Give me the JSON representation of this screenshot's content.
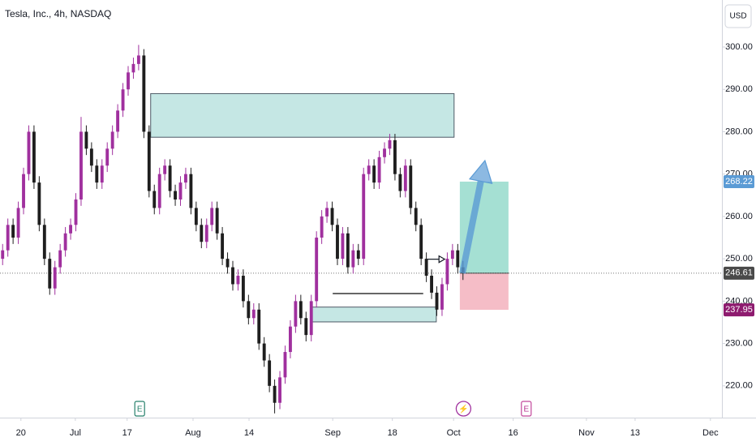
{
  "chart_data": {
    "type": "candlestick",
    "title": "Tesla, Inc., 4h, NASDAQ",
    "currency": "USD",
    "up_color": "#a0309e",
    "down_color": "#1e1e1e",
    "xlim": [
      -0.5,
      137.5
    ],
    "xticks": [
      {
        "value": 3.5,
        "label": "20"
      },
      {
        "value": 13.9,
        "label": "Jul"
      },
      {
        "value": 23.8,
        "label": "17"
      },
      {
        "value": 36.4,
        "label": "Aug"
      },
      {
        "value": 47.1,
        "label": "14"
      },
      {
        "value": 63.1,
        "label": "Sep"
      },
      {
        "value": 74.5,
        "label": "18"
      },
      {
        "value": 86.2,
        "label": "Oct"
      },
      {
        "value": 97.6,
        "label": "16"
      },
      {
        "value": 111.6,
        "label": "Nov"
      },
      {
        "value": 120.9,
        "label": "13"
      },
      {
        "value": 135.3,
        "label": "Dec"
      }
    ],
    "ylim": [
      212.5,
      311.1
    ],
    "yticks": [
      {
        "value": 220,
        "label": "220.00"
      },
      {
        "value": 230,
        "label": "230.00"
      },
      {
        "value": 240,
        "label": "240.00"
      },
      {
        "value": 250,
        "label": "250.00"
      },
      {
        "value": 260,
        "label": "260.00"
      },
      {
        "value": 270,
        "label": "270.00"
      },
      {
        "value": 280,
        "label": "280.00"
      },
      {
        "value": 290,
        "label": "290.00"
      },
      {
        "value": 300,
        "label": "300.00"
      }
    ],
    "candles": [
      [
        250,
        253.5,
        248.5,
        252
      ],
      [
        252,
        259.5,
        250.5,
        258
      ],
      [
        258,
        259.5,
        253.5,
        255
      ],
      [
        255,
        263.5,
        253.5,
        262
      ],
      [
        262,
        271.5,
        260.5,
        270
      ],
      [
        270,
        281.5,
        268.5,
        280
      ],
      [
        280,
        281.5,
        266.5,
        268
      ],
      [
        268,
        269.5,
        256.5,
        258
      ],
      [
        258,
        259.5,
        248.5,
        250
      ],
      [
        250,
        251.5,
        241.5,
        243
      ],
      [
        243,
        249.5,
        241.5,
        248
      ],
      [
        248,
        253.5,
        246.5,
        252
      ],
      [
        252,
        257.5,
        250.5,
        256
      ],
      [
        256,
        259.5,
        254.5,
        258
      ],
      [
        258,
        265.5,
        256.5,
        264
      ],
      [
        264,
        283.5,
        262.5,
        280
      ],
      [
        280,
        281.5,
        274.5,
        276
      ],
      [
        276,
        277.5,
        270.5,
        272
      ],
      [
        272,
        273.5,
        266.5,
        268
      ],
      [
        268,
        273.5,
        266.5,
        272
      ],
      [
        272,
        277.5,
        270.5,
        276
      ],
      [
        276,
        281.5,
        274.5,
        280
      ],
      [
        280,
        286.5,
        278.5,
        285
      ],
      [
        285,
        291.5,
        283.5,
        290
      ],
      [
        290,
        295.5,
        288.5,
        294
      ],
      [
        294,
        297.5,
        292.5,
        296
      ],
      [
        296,
        300.5,
        294.5,
        298
      ],
      [
        298,
        299.5,
        278.5,
        280
      ],
      [
        280,
        281.5,
        264.5,
        266
      ],
      [
        266,
        267.5,
        260.5,
        262
      ],
      [
        262,
        271.5,
        260.5,
        270
      ],
      [
        270,
        273.5,
        268.5,
        272
      ],
      [
        272,
        273.5,
        264.5,
        266
      ],
      [
        266,
        267.5,
        262.5,
        264
      ],
      [
        264,
        269.5,
        262.5,
        268
      ],
      [
        268,
        271.5,
        266.5,
        270
      ],
      [
        270,
        271.5,
        260.5,
        262
      ],
      [
        262,
        263.5,
        256.5,
        258
      ],
      [
        258,
        259.5,
        252.5,
        254
      ],
      [
        254,
        259.5,
        252.5,
        258
      ],
      [
        258,
        263.5,
        256.5,
        262
      ],
      [
        262,
        263.5,
        254.5,
        256
      ],
      [
        256,
        257.5,
        248.5,
        250
      ],
      [
        250,
        251.5,
        246.5,
        248
      ],
      [
        248,
        249.5,
        242.5,
        244
      ],
      [
        244,
        247.5,
        242.5,
        246
      ],
      [
        246,
        247.5,
        238.5,
        240
      ],
      [
        240,
        241.5,
        234.5,
        236
      ],
      [
        236,
        239.5,
        234.5,
        238
      ],
      [
        238,
        239.5,
        228.5,
        230
      ],
      [
        230,
        231.5,
        224.5,
        226
      ],
      [
        226,
        227.5,
        218.5,
        220
      ],
      [
        220,
        221.5,
        213.5,
        216
      ],
      [
        216,
        223.5,
        214.5,
        222
      ],
      [
        222,
        229.5,
        220.5,
        228
      ],
      [
        228,
        235.5,
        226.5,
        234
      ],
      [
        234,
        241.5,
        232.5,
        240
      ],
      [
        240,
        241.5,
        234.5,
        236
      ],
      [
        236,
        237.5,
        230.5,
        232
      ],
      [
        232,
        241.5,
        230.5,
        240
      ],
      [
        240,
        256.5,
        238.5,
        255
      ],
      [
        255,
        261.5,
        253.5,
        260
      ],
      [
        260,
        263.5,
        258.5,
        262
      ],
      [
        262,
        263.5,
        256.5,
        258
      ],
      [
        258,
        259.5,
        248.5,
        250
      ],
      [
        250,
        257.5,
        248.5,
        256
      ],
      [
        256,
        257.5,
        246.5,
        248
      ],
      [
        248,
        253.5,
        246.5,
        252
      ],
      [
        252,
        253.5,
        248.5,
        250
      ],
      [
        250,
        271.5,
        248.5,
        270
      ],
      [
        270,
        273.5,
        268.5,
        272
      ],
      [
        272,
        273.5,
        266.5,
        268
      ],
      [
        268,
        275.5,
        266.5,
        274
      ],
      [
        274,
        277.5,
        272.5,
        276
      ],
      [
        276,
        279.5,
        274.5,
        278
      ],
      [
        278,
        279.5,
        268.5,
        270
      ],
      [
        270,
        271.5,
        264.5,
        266
      ],
      [
        266,
        273.5,
        264.5,
        272
      ],
      [
        272,
        273.5,
        260.5,
        262
      ],
      [
        262,
        263.5,
        256.5,
        258
      ],
      [
        258,
        259.5,
        248.5,
        250
      ],
      [
        250,
        251.5,
        244.5,
        246
      ],
      [
        246,
        247.5,
        240.5,
        242
      ],
      [
        242,
        243.5,
        236.5,
        238
      ],
      [
        238,
        245.5,
        236.5,
        244
      ],
      [
        244,
        251.5,
        242.5,
        250
      ],
      [
        250,
        253.5,
        248.5,
        252
      ],
      [
        252,
        253.5,
        246.5,
        248
      ],
      [
        248,
        249.5,
        245,
        246.61
      ]
    ],
    "zones": [
      {
        "x": [
          28.3,
          86.3
        ],
        "y": [
          278.7,
          289
        ],
        "color": "#b2dfdb"
      },
      {
        "x": [
          58.9,
          82.9
        ],
        "y": [
          235.1,
          238.6
        ],
        "color": "#b2dfdb"
      }
    ],
    "long_position": {
      "x": [
        87.4,
        96.7
      ],
      "target": 268.22,
      "entry": 246.61,
      "stop": 237.95
    },
    "lines": [
      {
        "x": [
          63.1,
          80.4
        ],
        "y": [
          241.8,
          241.8
        ]
      }
    ],
    "arrows": [
      {
        "x": [
          81.2,
          84.5
        ],
        "y": [
          249.9,
          249.9
        ],
        "color": "#131722"
      },
      {
        "x": [
          87.9,
          92.2
        ],
        "y": [
          246.6,
          273.2
        ],
        "color": "#5b9bd5"
      }
    ],
    "markers": [
      {
        "value": 268.22,
        "label": "268.22",
        "color": "#5b9bd5"
      },
      {
        "value": 246.61,
        "label": "246.61",
        "color": "#4a4a4a"
      },
      {
        "value": 237.95,
        "label": "237.95",
        "color": "#8e1b6f"
      }
    ],
    "events": [
      {
        "x": 26.2,
        "label": "E"
      },
      {
        "x": 88.1,
        "label": "⚡"
      },
      {
        "x": 100.1,
        "label": "E"
      }
    ]
  }
}
